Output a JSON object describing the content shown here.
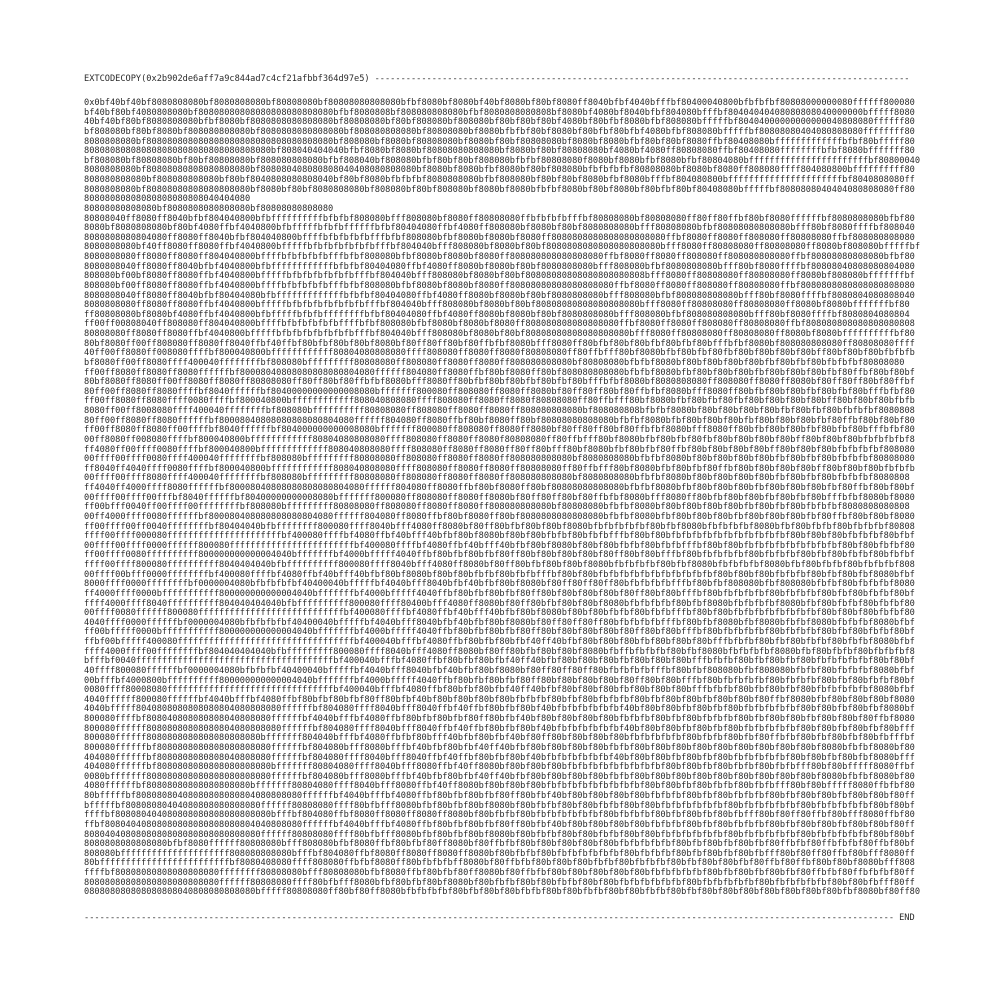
{
  "colors": {
    "background": "#ffffff",
    "text": "#2b2b2b"
  },
  "header": {
    "opcode_call": "EXTCODECOPY(0x2b902de6aff7a9c844ad7c4cf21afbbf364d97e5)",
    "separator": "-------------------------------------------------------------------------------------------------------"
  },
  "footer": {
    "separator": "------------------------------------------------------------------------------------------------------------------------------------------------------------",
    "end_label": "END"
  },
  "body": {
    "lines": [
      "0x0bf40bf40bf8080808080bf8080808080bf80808080bf80808080808080bfbf8080bf8080bf40bf8080bf80bf8080ff8040bfbf4040bfffbf80400040800bfbfbfbf80808000000080ffffff800080",
      "bf40bf80bf4080808080bf80808080808080808080808080bfbf8080808bf808080808080bfbf8080808080808bf8080bf4080bf8040bfbf804080bfffbf80404040408080808040000000bfffff8080",
      "40bf40bf80bf8080808080bfbf8080bf8080808080808080bf80808080bf80bf808080bf808080bf80bf80bf80bf4080bf80bfbf8080bfbf808080bfffffbf80404000000000000040808080ffffff80",
      "bf808080bf80bf8080bf808080808080bf8080808080808080bf808080808080bf80808080bf8080bfbfbf80bf8080bf80bfbf80bfbf4080bfbf808080bfffffbf80808080404080808080ffffffff80",
      "8080808080bf808080808080808080808080808080808080bf808080bf8080bf80808080bf8080bf80bf80808080bf8080bf8080bfbf80bf80bf8080ffbf80408080bfffffffffffffbfbf80bfffff80",
      "808080808080808080808080808080808080bf808040404040bfbf8080bf8080bf80808080808080bf8080bf80bf80808080bf4080bf4080ff80808080ffbf80408080ffffffffbfbf8080bfffffff80",
      "bf808080bf80808080bf80bf80808080bf808080808080bfbf808040bf808080bfbf80bf80bf808080bfbfbf80808080f8080bf8080bfbf8080bfbf80804080bfffffffffffffffffffffffbf80800040",
      "8080808080bf80808080808080808080bf808080408080808040408080808080bf8080bf8080bfbf8080bf80bf808080bfbfbfbfbf80808080bf8080bf8080ff808080ffff804080800bffffffffff80",
      "808080808080bf808080808080bf80bf8040808080808040bf80bf8080bfbfbfbf8080808080bfbf808080bf80bf80bf8080bfbf8080bfffbf804080800bffffffffffffffffffffffbf8040808080ff",
      "8080808080bf80808080808080808080bf8080bf80bf8080808080bf808080bf80bf808080bf8080bf8080bfbfbf8080bf80bf8080bf80bfbf80bf80408080bfffffbf8080808040404080808080ff80",
      "80808080808080808080808040404080",
      "80808080808080bf8080808080808080bf80808080808080",
      "80808040ff8080ff8040bfbf804040800bfbffffffffffbfbfbf808080bfff808080bf8080ff80808080ffbfbfbfbfffbf80808080bf80808080ff80ff80ffbf80bf8080ffffffbf8080808080bfbf80",
      "8080bf8080808080bf80bf4080ffbf4040800bfbfffffbfbfbffffffbfbf80404080ffbf4080ff808080bf8080bf80bf8080808080bfff80808080bfbf80808080808080bfff80bf8080ffffbf808040",
      "8080808080804080ff8080ff8040bfbf804040800bffffbfbfbfbfbfffbfbf808080bfbf8080bf8080bf8080ff8080808080808080808080ffbf8080ff8080ff808080ff80808080ffbf808080808080",
      "8080808080bf40ff8080ff8080ffbf4040800bfffffbfbfbfbfbfbfbfffbf804040bfff808080bf8080bf80bf8080808080808080808080bfff8080ff80808080ff80808080ff8080bf808080bfffffbf",
      "8080808080ff8080ff8080ff804040800bffffbfbfbfbfbfffbfbf808080bfbf8080bf8080bf8080ff808080808080808080ffbf8080ff8080ff808080ff808080808080ffbf80808080808080bfbf80",
      "8080808040ff8080ff8040bfbf4040800bfbffffffffffffbfbfbf80404080ffbf4080ff8080bf8080bf80bf8080808080bfff808080bfbf8080808080bfff80bf8080ffffbf80808040808080804080",
      "808080bf00bf8080ff8080ffbf4040800bfffffbfbfbfbfbfbfbfffbf804040bfff808080bf8080bf80bf80808080808080808080808bfff8080ff80808080ff80808080ff8080bf808080bfffffffbf",
      "808080bf00ff8080ff8080ffbf4040800bffffbfbfbfbfbfffbfbf808080bfbf8080bf8080bf8080ff80808080808080808080ffbf8080ff8080ff808080ff80808080ffbf8080808080808080808080",
      "8080808040ff8080ff8040bfbf80404080bfbfffffffffffffbfbfbf80404080ffbf4080ff8080bf8080bf80bf8080808080bfff808080bfbf808080808080bfff80bf8080ffffbf8080804080808040",
      "8080808080ff8080ff8080ffbf4040800bfffffbfbfbfbfbfbfbfbfffbf804040bfff808080bf8080bf80bf80808080808080808080bfff8080ff80808080ff80808080ff8080bf8080bfffffffbf80",
      "ff80808080bf8080bf4080ffbf4040800bfbfffffbfbfbffffffffbfbf8040408 0ffbf4080ff8080bf8080bf80bf8080808080bfff808080bfbf808080808080bfff80bf8080ffffbf8080804080804",
      "ff00ff00808040ff808080ff804040800bffffbfbfbfbfbfbffffbfbf808080bfbf8080bf8080bf8080ff808080808080808080ffbf8080ff8080ff808080ff80808080ffbf808080808080808080808",
      "80808080ff8080ff8080ffbf4040800bfffffbfbfbfbfbfbfbfbfffbf804040bfff808080bf8080bf80bf80808080808080808080bfff8080ff80808080ff80808080ff8080bf8080bffffffffffbf80",
      "80bf8080ff00ff808080ff8080ff8040ffbf40ffbf80bfbf80bf80bf8080bf80ff80ff80bf80ffbfbf8080bfff8080ff80bfbf80bf80bfbf80bfbf80bfffbfbf8080bf808080808080ff80808080ffff",
      "40ff00ff8080ff008080ffffbf800040800bffffffffffff80804080808080ffff808080ff8080ff8080f80808080ff80ffbfff80bf8080bfbf80bfbf80fbf80bf80bf80bf80bff80bf80bf80bfbfbfb",
      "bf8080ff00ff8080ffff400040ffffffffbf808080bfffffffff80808080ff8080 80ff8080ff8080ff808080808080bf80808080bfbfbf8080bf80bf80bf80bf80bfbf80bfbf80bfbfbfbf80808080",
      "ff00ff8080ff8080ff8080ffffffbf80008040808080808080804080ffffff804080ff8080ffbf80bf8080ff80bf808080808080bfbfbf8080bfbf80bf80bf80bfbf80bf80bf80bfbf80ffbf80bf80bf",
      "80bf8080ff8080ff00ff8080ff8080ff80808080ff80ff80bf80ffbfbf8080bfff8080ff80bfbf80bf80bfbf80bfbf80bfffbfbf8080bf8080808080ff808080ff8080ff8080bf80ff80ff80bf80ffbf",
      "80ff00ff8080ff8080ffffbf8040ffffffbf80400000000000008080bfffffff800080ff808080ff8080ff8080bf80ff80ff80bf80ffbfbf8080bfff8080ff80bfbf80bf80bfbf80bfbf80bfffbfbf80",
      "ff00ff8080ff8080ffff0080ffffbf800040800bffffffffffff808040808080ffff808080ff8080ff8080f80808080ff80ffbfff80bf8080bfbf80bfbf80fbf80bf80bf80bf80bff80bf80bf80bfbfb",
      "8080ff00ff8008080ffff400040ffffffffbf808080bffffffffff80808080ff808080ff8080ff8080ff8080808080 80bf808080808bfbfbf8080bf80bf80bf80bf80bfbf80bfbf80bfbfbfbf8080808",
      "80ff00ff8080ff8080ffffffbf8000804080808080808080 4080ffffff804080ff8080ffbf80bf8080ff80bf80808080808080bfbfbf8080bfbf80bf80bf80bfbf80bf80bf80bfbf80ffbf80bf80bf80",
      "ff00ff8080ff8080ff00ffffbf8040ffffffbf804000000000008080bfffffff800080ff808080ff8080ff8080bf80ff80ff80bf80ffbfbf8080bfff8080ff80bfbf80bf80bfbf80bfbf80bfffbfbf80",
      "00ff8080ff008080ffffbf800040800bffffffffffff80804080808080ffff808080ff8080ff8080f80808080ff80ffbfff80bf8080bfbf80bfbf80fbf80bf80bf80bf80bff80bf80bf80bfbfbfbfbf8",
      "ff4080ff00ffff0080ffffbf800040800bfffffffffffff808040808080ffff80808 0ff8080ff8080ff80ff80bfff80bf8080bfbf80bfbf80ffbf80bf80bf80bf80bff80bf80bf80bfbfbfbfbf808080",
      "00ffff00ffff0080ffff400040ffffffffbf808080bfffffffff80808080ff80808 0ff8080ff8080ff808080808080bf8080808080bfbfbf8080bf80bf80bf80bf80bfbf80bfbf80bfbfbfbf80808080",
      "ff8040ff4040ffff0080ffffbf800040800bffffffffffff808040808080ffff808080ff8080ff8080ff80808080ff80ffbfff80bf8080bfbf80bfbf80ffbf80bf80bf80bf80bff80bf80bf80bfbfbfb",
      "00ffff00ffff8080ffff400040ffffffffbf808080bfffffffff80808080ff80808 0ff8080ff8080ff8080808080 80bf8080808080bfbfbf8080bf80bf80bf80bf80bfbf80bfbf80bfbfbfbf8080808",
      "ff4040ff4000ffff8080ffffffbf80008040808080808080804080ffffff804080ff8080ffbf80bf8080ff80bf80808080808080bfbfbf8080bfbf80bf80bf80bfbf80bf80bf80bfbf80ffbf80bf80bf",
      "00ffff00ffff00fffbf8040ffffffbf80400000000008080bfffffff800080ff808080ff8080ff8080bf80ff80ff80bf80ffbfbf8080bfff8080ff80bfbf80bf80bfbf80bfbf80bfffbfbf8080bf8080",
      "ff00bfff0040ff00ffff00ffffffffbf808080bfffffffff8080808 0ff808080ff8080ff8080ff808080808080bf80808080bfbfbf8080bf80bf80bf80bf80bfbf80bfbf80bfbfbfbf8080808080808",
      "00ff4000ffff0080ffffffbf800080408080808080804080ffffff804080ff8080ffbf80bf8080ff80bf8080808080808080bfbfbf8080bfbf80bf80bf80bfbf80bf80bf80bfbf80ffbf80bf80bf8080",
      "ff00ffff00ff0040ffffffffbf80404040bfbffffffff800080ffff8040bfff4080ff8080bf80ff80bfbf80bf80bf8080bfbfbfbfbfbf80bfbf8080bfbfbfbfbf8080bfbf80bfbfbf80bfbfbfbf80808",
      "ffff00ffff000080ffffffffffffffffffffffbf400080ffffbf4080ffbf40bfff40bfbf80bf8080bf80bf80bfbfbf80bfbfbfffbf80bf80bfbfbfbfbfbfbfbfbfbfbfbf80bf80bf80bfbfbfbf80bfbf",
      "00ffff00ffff0000ffffff800080ffffffffffffffffffffffffbf400080ffffbf4080ffbf40bfff40bfbf80bf8080bf80bf80bfbfbf80bfbfbfffbf80bf80bfbfbfbfbfbfbfbfbfbf80bf80bfbfbf80",
      "ff00ffff0080ffffffffff800000000000004040bfffffffbf4000bfffff4040ffbf80bfbf80bfbf80ff80bf80bf80bf80bf80ff80bf80bfffbf80bfbfbfbfbf80bfbfbfbf80bfbf80bfbfbf80bfbfbf",
      "ffff00ffff800080ffffffffff8040404040bfbffffffffff800080ffff8040bfff4080ff8080bf80ff80bfbf80bf80bf8080bfbfbfbfbf80bfbf8080bfbfbfbfbf8080bfbf80bfbfbf80bfbfbfbf808",
      "00ffff00bfff0000ffffffffbf400080ffffbf4080ffbf40bfff40bfbf80bf8080bf80bf80bfbfbf80bfbfbfffbf80bf80bfbfbfbfbfbfbfbfbfbfbfbf80bf80bf80bfbfbfbf80bfbf80bfbf8080bfbf",
      "8000ffff0000ffffffffbf0000004080bfbfbfbfbf40400040bfffffbf4040bfff8040bfbf40bfbf80bf8080bf80ff80ff80ff80bfbfbfbfbfffbf80bfbf808080bfbf808080bfbfbf80bfbfbfbf8080",
      "ff4000ffff0000bfffffffffff8000000000000040 40bfffffffbf4000bfffff4040ffbf80bfbf80bfbf80ff80bf80bf80bf80bf80ff80bf80bfffbf80bfbfbfbfbf80bfbfbfbf80bfbf80bfbfbf80bf",
      "ffff4000ffff8040ffffffffff80404040404 0bfbffffffffff800080ffff80400bfff4080ff8080bf80ff80bfbf80bf80bf8080bfbfbfbfbf80bfbf8080bfbfbfbfbf8080bfbf80bfbfbf80bfbfbf80",
      "00ffff0080ffffff800080ffffffffffffffffffffffffffffbf400080ffffbf4080ffbf40bfff40bfbf80bf8080bf80bf80bfbfbf80bfbfbfffbf80bf80bfbfbfbfbfbfbfbfbf80bf80bf80bfbfbf80",
      "4040ffff0000ffffffbf0000004080bfbfbfbfbf40400040bfffffbf4040bfff8040bfbf40bfbf80bf8080bf80ff80ff80ff80bfbfbfbfbfffbf80bfbf8080bfbf8080bfbfbf8080bfbfbfbf8080bfbf",
      "ff00bfffff0000bfffffffffff800000000000004040bfffffffbf4000bfffff4040ffbf80bfbf80bfbf80ff80bf80bf80bf80bf80ff80bf80bfffbf80bfbfbfbfbf80bfbfbfbf80bfbf80bfbfbf80bf",
      "ffbf00bfffff400080ffffffffffffffffffffffffffffffffffbf400040bfffbf4080ffbf80bfbf80bfbf40ff40bfbf80bf80bf80bfbf80bf80bf80bfffbfbfbf80bfbf80bfbfbf80bfbfbf8080bfbf",
      "ffff4000ffff00ffffffffbf804040404040bfbfffffffff800080ffff8040bfff4080ff8080bf80ff80bfbf80bf80bf8080bfbffbfbfbfbf80bfbf8080bfbfbfbfbf8080bfbf80bfbfbf80bfbfbfbf8",
      "bfffbf0040ffffffffffffffffffffffffffffffffffffffbf400040bfffbf4080ffbf80bfbf80bfbf40ff40bfbf80bf80bf80bfbf80bf80bf80bfffbfbfbf80bfbf80bfbf80bfbfbfbfbfbf80bf80bf",
      "40ffff800080ffffffbf0000004080bfbfbfbf40400040bfffffbf4040bfff8040bfbf40bfbf80bf8080bf80ff80ff80ff80bfbfbfbfbfffbf80bfbf808080bfbf808080bfbfbf80bfbfbfbf8080bfbf",
      "00bfffbf4000800bffffffffff800000000000004040bfffffffbf4000bfffff4040ffbf80bfbf80bfbf80ff80bf80bf80bf80bf80ff80bf80bfffbf80bfbfbfbfbf80bfbfbfbf80bfbf80bfbfbf80bf",
      "0080ffff80008080ffffffffffffffffffffffffffffffffbf400040bfffbf4080ffbf80bfbf80bfbf40ff40bfbf80bf80bf80bfbf80bf80bf80bfffbfbfbf80bfbf80bfbf80bfbfbfbfbfbf8080bfbf",
      "4040ffffff800080ffffffbf4040bfffbf4080ffbf80bfbf80bfbf80ff80bfbf40bf80bf80bf80bf80bfbfbfbf80bfbf80bfbfbfbf80bfbf80bf80bfbf80bf80bf80ffbf8080bfbf80bf80bf80bf8080",
      "4040bfffff8040808080808080804080808080ffffffbf804080ffff8040bfff8040ffbf40ffbf80bfbf80bf40bfbfbfbfbfbfbf40bf80bf80bfbf80bfbf80bfbfbfbfbfbf80bf80bfbf80bfbf8080bf",
      "800080ffffbf808040808080808040808080ffffffbf4040bfffbf4080ffbf80bfbf80bfbf80ff80bfbf40bf80bf80bf80bf80bfbfbfbf80bfbf80bfbfbfbf80bfbf80bf80bfbf80bf80bf80ffbf8080",
      "800080ffffff80808080808080804080808080ffffffbf804080ffff8040bfff8040ffbf40ffbf80bfbf80bf40bfbfbfbfbfbfbf40bf80bf80bfbf80bfbf80bfbfbfbfbfbf80bf80bfbf80bfbf80bfff",
      "800080ffffff8080808080808080808080bfffffff804040bfffbf4080ffbfbf80bfff40bfbf80bfbf40bf80ff80bf80bf80bf80bfbfbfbfbfbf80bfbfbf80bfbf80ffbfbf80bfbf80bfbf80bfbfffbf",
      "800080ffffffbf8080808080808080808080ffffffbf804080bfff8080bfffbf40bfbf80bfbf40ff40bfbf80bf80bf80bf80bfbfbf80bf80bf80bf80bf80bf80bf80bf80bf80bf8080bfbfbf8080bf80",
      "404080ffffffbf8080808080808040808080ffffffbf804080ffff8040bfff8040ffbf40ffbf80bfbf80bf40bfbfbfbfbfbfbf40bf80bf80bfbf80bfbf80bfbfbfbfbfbf80bf80bfbf80bfbf8080bfff",
      "404080ffffffbf80808080808080808080 80bfffffff80804080ffff8040bfff8080ffbf40ff8080bf80bf80bf80bfbfbfbfbfbfbfbfbfbf80bf80bfbf80bfbfbf80bfbfbfff80bf80bfffff8080ffbf",
      "0080bfffffff80808080808080808080 8080ffffffbf804080bfff8080bfffbf40bfbf80bfbf40ff40bfbf80bf80bf80bf80bfbfbf80bf80bf80bf80bf80bf80bf80bf80bf80bf8080bfbfbf8080bf80",
      "4080ffffffbf80808080808080808080bfffffff80804080ffff8040bfff8080ffbf40ff8080bf80bf80bf80bfbfbfbfbfbfbfbfbfbf80bf80bfbf80bfbfbf80bfbfbfff80bf80bfffff8080ffbfbf80",
      "80bfffffbf8080808040808080808080 4080808080ffffffbf4040bfffbf4080ffbf80bfbf80bfbf80ff80bfbf40bf80bf80bf80bf80bfbfbfbf80bfbf80bfbfbfbf80bfbf80bf80bfbf80bf80bf80ff",
      "bfffffbf808080804040808080808080 80ffffff80808080ffff80bfbfff8080bfbf80bfbf80bf8080bf80bfbfbf80bf80bfbfbf80bf80bfbfbfbfbfbfbf80bfbfbfbfbfbf80bfbfbfbfbfbf80bf80bf",
      "ffffbf80808040408080808080808080 8080bfffbf804080ffbf8080ff8080ff8080ff8080bf80bfbfbf80bfbfbfbfbfbfbf80bfbfbfbf80bfbf80bfbf80bfbfff80bf80ff80ffbf80bfff8080ffbf80",
      "ffbf80804040808080808080808080804040808080ffffffbf4040bfffbf4080ffbf80bfbf80bfbf80ff80bfbf40bf80bf80bf80bf80bfbfbfbf80bfbf80bfbfbfbf80bfbf80bf80bfbf80bf80bf80ff",
      "808040408080808080808080808080 8080ffffff80808080ffff80bfbfff8080bfbf80bfbf80bf8080bf80bfbfbf80bf80bfbfbf80bf80bfbfbfbfbfbfbf80bfbfbfbfbfbf80bfbfbfbfbfbf80bf80bf",
      "8080808080808080bfbf8080ffffff80808080bfff808080bfbf8080ffbf80bfbf80ff8080bf80ffbfbf80bf80bf80bf80bf80bfbfbfbfbfbf80bfbf80bfbf80bfbf80ffbfbf80ffbfbfbf80ffbf80bf",
      "808080bfffffffffffffffffffff808080808080bfffbf804080ffbf8080ff8080ff8080ff8080bf80bfbfbf80bfbfbfbfbfbfbf80bfbfbfbf80bfbf80bfbf80bfbfff80bf80ff80ffbf80bfff8080ff",
      "80bfffffffffffffffffffffffffbf8080408080ffff808080ffbfbf8080ff80bfbfbfbff8080bf80ffbfbf80bf80bf80bfbfbf80bfbfbfbf80bfbf80bf80bfbf80ffbf80ffbf80bf80bf8080bfff808",
      "ffffbf80808080808080808080ffffffff80808080bfff80808080bfbf8080ffbf80bfbf80ff8080bf80ffbfbf80bf80bf80bf80bf80bfbfbfbfbfbf80bfbf80bfbf80bfbf80ffbfbf80ffbfbfbf80ff",
      "80808080808080808080808080ffffff80808080ffff80bfbfff8080bfbf80bfbf80bf8080bf80bfbfbf80bf80bfbfbf80bf80bfbfbfbfbfbfbf80bfbfbfbfbfbf80bfbfbfbfbfbf80bf80bfbfff80ff",
      "08080808080808080804080808080808 0bfffff80808080ff80bf80ff8080bfbfbfbfbf80bfbf80bf80bfbfbf80bf80bfbfbf80bf80bfbfbf80bfbf80bf80bf80bf80bf80bf80bf80bfbf8080bf80ff80"
    ]
  }
}
